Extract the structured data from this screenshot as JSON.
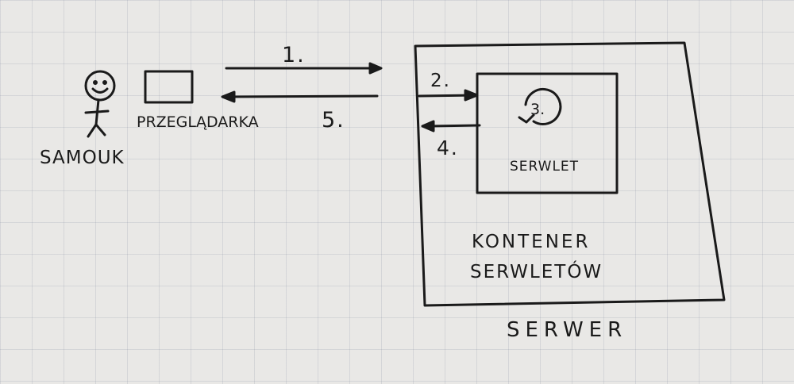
{
  "actor": {
    "label": "SAMOUK"
  },
  "browser": {
    "label": "PRZEGLĄDARKA"
  },
  "server": {
    "label": "SERWER"
  },
  "container": {
    "line1": "KONTENER",
    "line2": "SERWLETÓW"
  },
  "servlet": {
    "label": "SERWLET"
  },
  "steps": {
    "s1": "1.",
    "s2": "2.",
    "s3": "3.",
    "s4": "4.",
    "s5": "5."
  }
}
